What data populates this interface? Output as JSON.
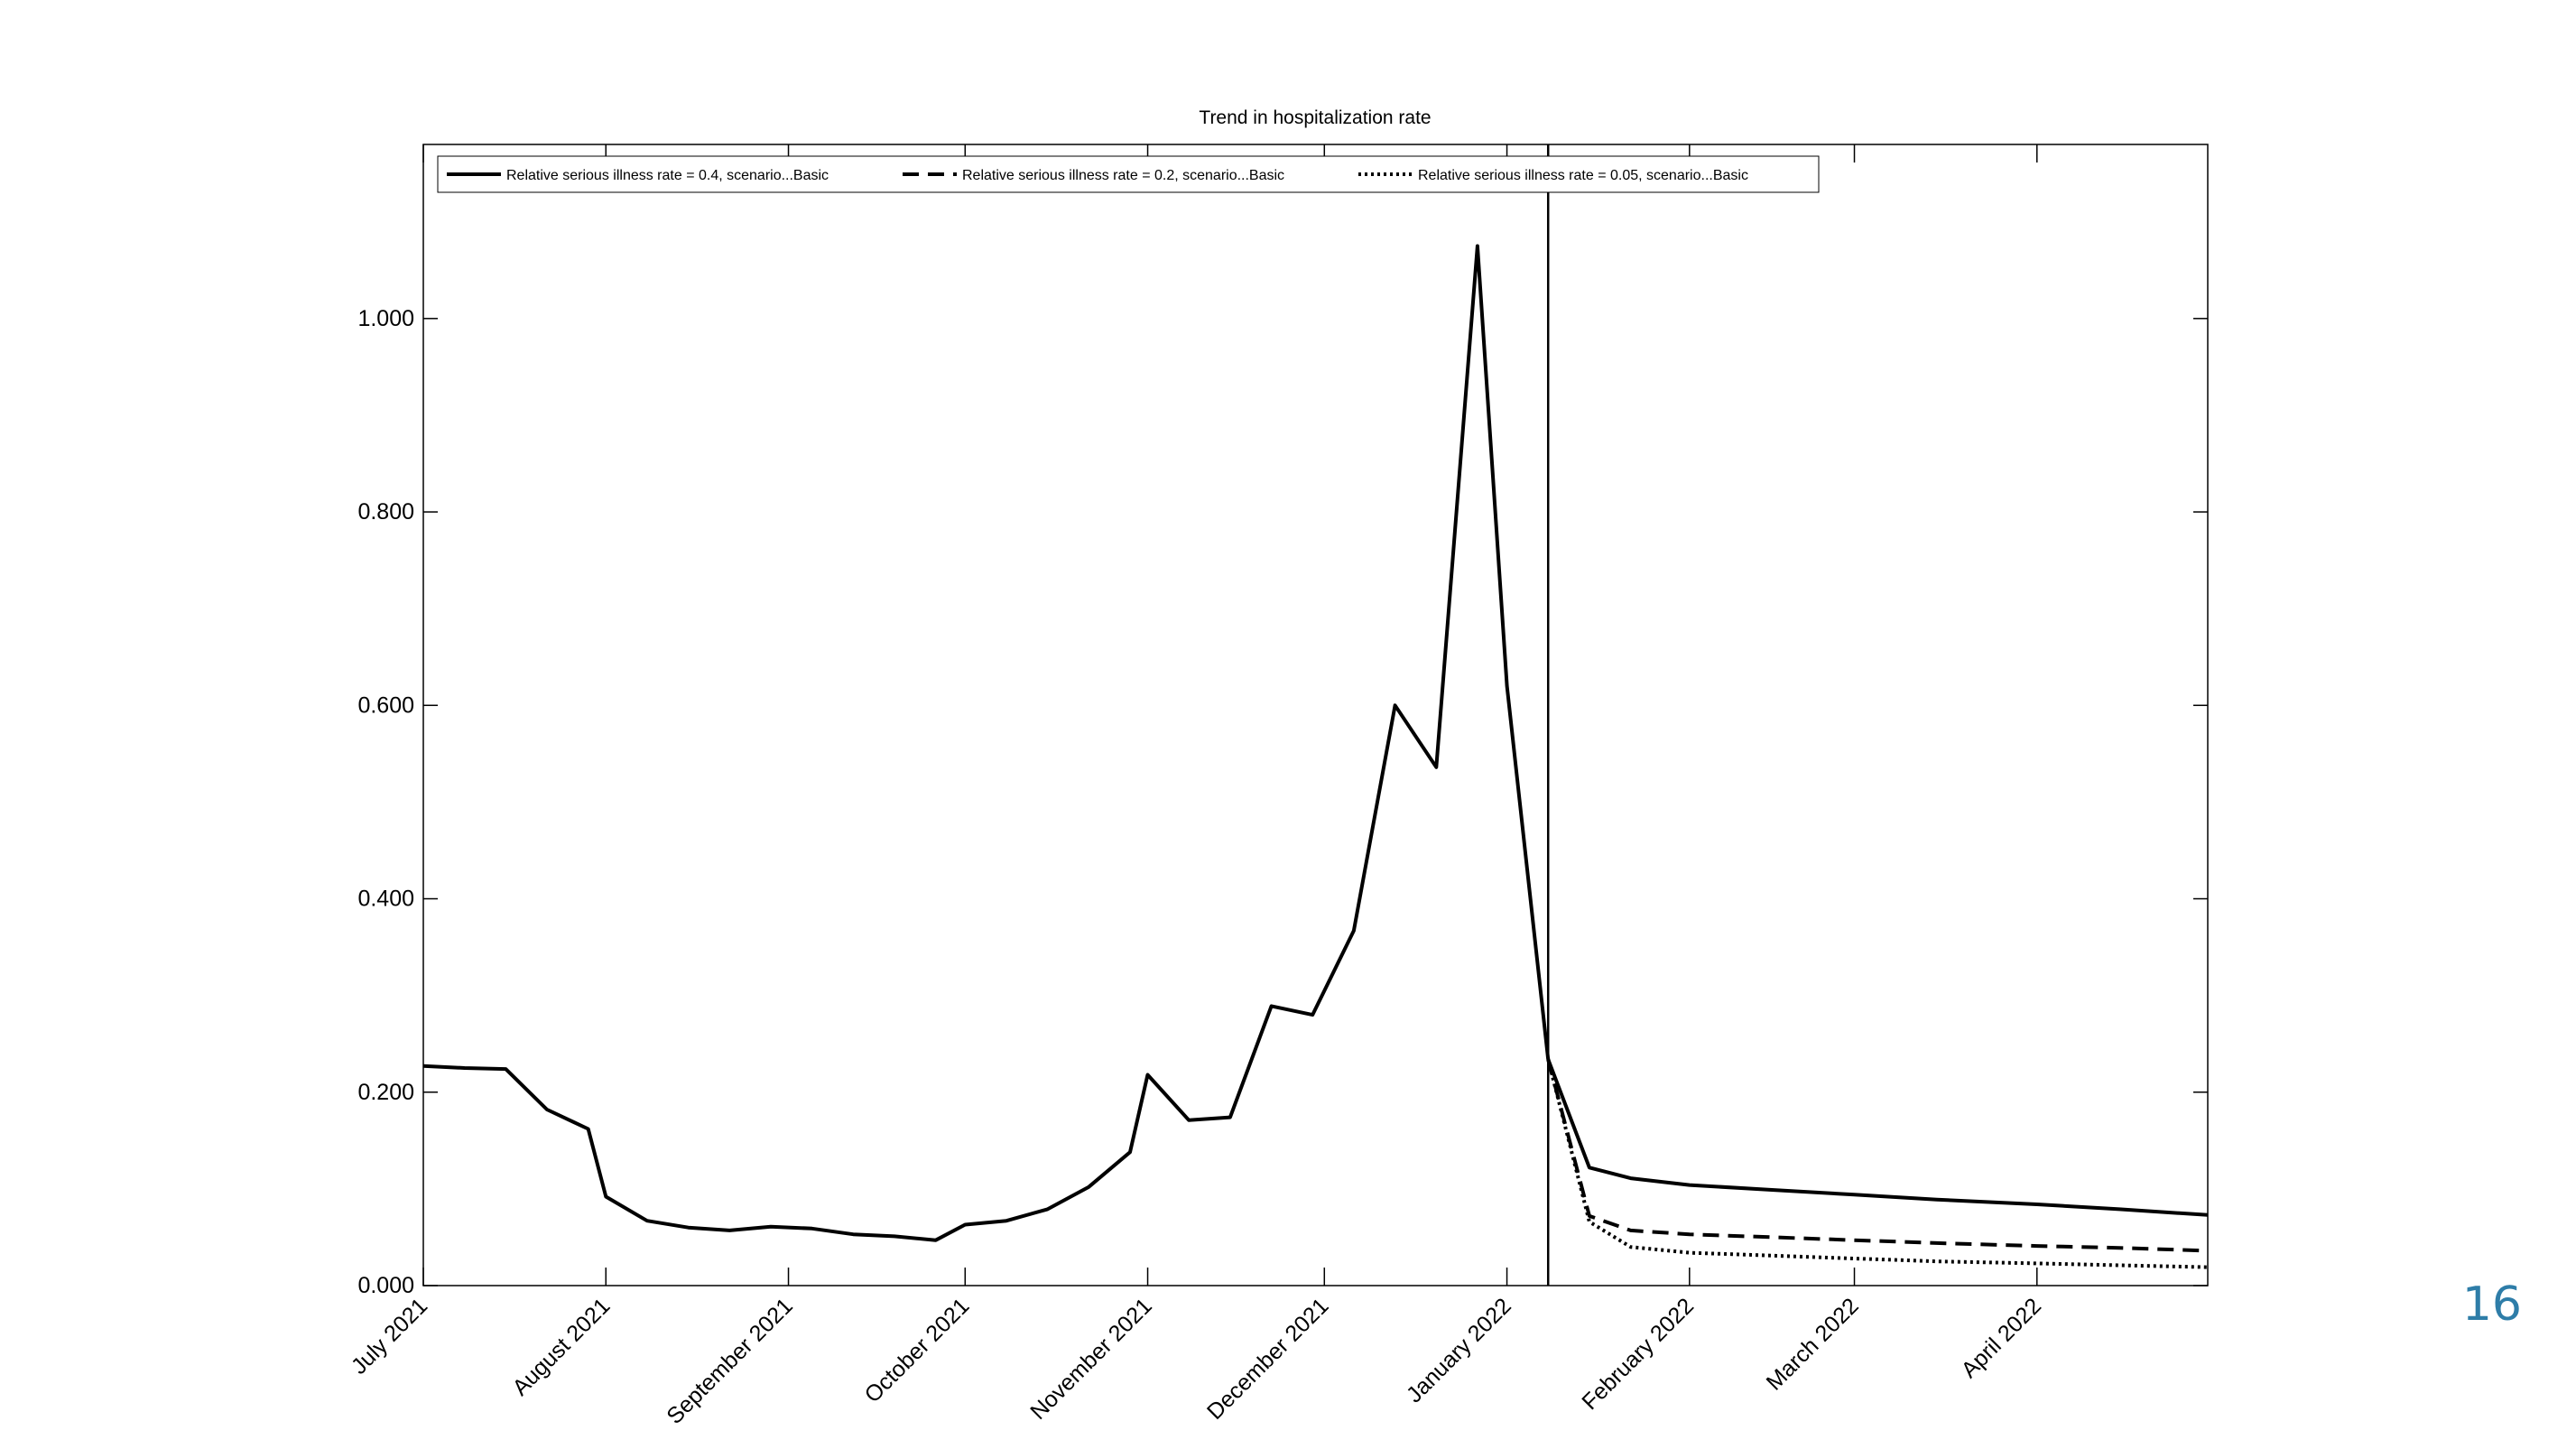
{
  "slide": {
    "page_number": "16"
  },
  "chart_data": {
    "type": "line",
    "title": "Trend in hospitalization rate",
    "xlabel": "",
    "ylabel": "",
    "ylim": [
      0,
      1.18
    ],
    "y_ticks": [
      0,
      0.2,
      0.4,
      0.6,
      0.8,
      1.0
    ],
    "y_tick_labels": [
      "0.000",
      "0.200",
      "0.400",
      "0.600",
      "0.800",
      "1.000"
    ],
    "x_range": [
      "2021-07-01",
      "2022-04-30"
    ],
    "x_ticks": [
      {
        "date": "2021-07-01",
        "label": "July 2021"
      },
      {
        "date": "2021-08-01",
        "label": "August 2021"
      },
      {
        "date": "2021-09-01",
        "label": "September 2021"
      },
      {
        "date": "2021-10-01",
        "label": "October 2021"
      },
      {
        "date": "2021-11-01",
        "label": "November 2021"
      },
      {
        "date": "2021-12-01",
        "label": "December 2021"
      },
      {
        "date": "2022-01-01",
        "label": "January 2022"
      },
      {
        "date": "2022-02-01",
        "label": "February 2022"
      },
      {
        "date": "2022-03-01",
        "label": "March 2022"
      },
      {
        "date": "2022-04-01",
        "label": "April 2022"
      }
    ],
    "vertical_line_date": "2022-01-08",
    "grid": false,
    "legend_position": "top-left",
    "historical": {
      "x": [
        "2021-07-01",
        "2021-07-08",
        "2021-07-15",
        "2021-07-22",
        "2021-07-29",
        "2021-08-01",
        "2021-08-08",
        "2021-08-15",
        "2021-08-22",
        "2021-08-29",
        "2021-09-05",
        "2021-09-12",
        "2021-09-19",
        "2021-09-26",
        "2021-10-01",
        "2021-10-08",
        "2021-10-15",
        "2021-10-22",
        "2021-10-29",
        "2021-11-01",
        "2021-11-08",
        "2021-11-15",
        "2021-11-22",
        "2021-11-29",
        "2021-12-06",
        "2021-12-13",
        "2021-12-20",
        "2021-12-27",
        "2022-01-01",
        "2022-01-08"
      ],
      "y": [
        0.227,
        0.225,
        0.224,
        0.182,
        0.162,
        0.092,
        0.067,
        0.06,
        0.057,
        0.061,
        0.059,
        0.053,
        0.051,
        0.047,
        0.063,
        0.067,
        0.079,
        0.102,
        0.138,
        0.218,
        0.171,
        0.174,
        0.289,
        0.28,
        0.367,
        0.6,
        0.536,
        1.075,
        0.62,
        0.234
      ]
    },
    "series": [
      {
        "name": "Relative serious illness rate = 0.4, scenario...Basic",
        "style": "solid",
        "x": [
          "2022-01-08",
          "2022-01-15",
          "2022-01-22",
          "2022-02-01",
          "2022-02-15",
          "2022-03-01",
          "2022-03-15",
          "2022-04-01",
          "2022-04-15",
          "2022-04-30"
        ],
        "values": [
          0.234,
          0.122,
          0.111,
          0.104,
          0.099,
          0.094,
          0.089,
          0.084,
          0.079,
          0.073
        ]
      },
      {
        "name": "Relative serious illness rate = 0.2, scenario...Basic",
        "style": "dashed",
        "x": [
          "2022-01-08",
          "2022-01-15",
          "2022-01-22",
          "2022-02-01",
          "2022-02-15",
          "2022-03-01",
          "2022-03-15",
          "2022-04-01",
          "2022-04-15",
          "2022-04-30"
        ],
        "values": [
          0.234,
          0.072,
          0.057,
          0.053,
          0.05,
          0.047,
          0.044,
          0.041,
          0.039,
          0.036
        ]
      },
      {
        "name": "Relative serious illness rate = 0.05, scenario...Basic",
        "style": "dotted",
        "x": [
          "2022-01-08",
          "2022-01-15",
          "2022-01-22",
          "2022-02-01",
          "2022-02-15",
          "2022-03-01",
          "2022-03-15",
          "2022-04-01",
          "2022-04-15",
          "2022-04-30"
        ],
        "values": [
          0.234,
          0.066,
          0.04,
          0.034,
          0.031,
          0.028,
          0.025,
          0.023,
          0.021,
          0.019
        ]
      }
    ]
  }
}
